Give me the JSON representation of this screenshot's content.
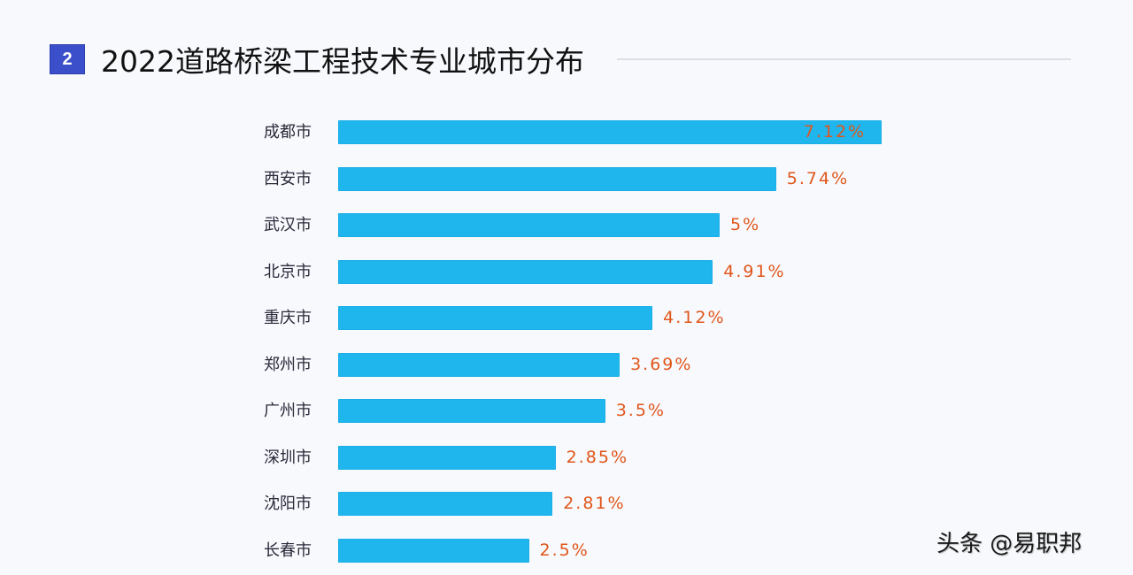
{
  "header": {
    "badge": "2",
    "title": "2022道路桥梁工程技术专业城市分布"
  },
  "watermark": "头条 @易职邦",
  "colors": {
    "bar": "#1fb6ee",
    "value_label": "#e0561a",
    "badge": "#3a4fc9"
  },
  "chart_data": {
    "type": "bar",
    "orientation": "horizontal",
    "title": "2022道路桥梁工程技术专业城市分布",
    "xlabel": "",
    "ylabel": "",
    "categories": [
      "成都市",
      "西安市",
      "武汉市",
      "北京市",
      "重庆市",
      "郑州市",
      "广州市",
      "深圳市",
      "沈阳市",
      "长春市"
    ],
    "values": [
      7.12,
      5.74,
      5,
      4.91,
      4.12,
      3.69,
      3.5,
      2.85,
      2.81,
      2.5
    ],
    "value_labels": [
      "7.12%",
      "5.74%",
      "5%",
      "4.91%",
      "4.12%",
      "3.69%",
      "3.5%",
      "2.85%",
      "2.81%",
      "2.5%"
    ],
    "unit": "%",
    "grid": false,
    "legend": "none"
  }
}
